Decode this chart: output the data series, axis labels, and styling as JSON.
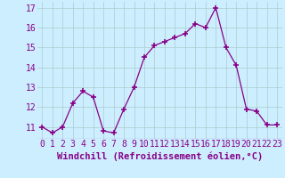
{
  "x": [
    0,
    1,
    2,
    3,
    4,
    5,
    6,
    7,
    8,
    9,
    10,
    11,
    12,
    13,
    14,
    15,
    16,
    17,
    18,
    19,
    20,
    21,
    22,
    23
  ],
  "y": [
    11.0,
    10.7,
    11.0,
    12.2,
    12.8,
    12.5,
    10.8,
    10.7,
    11.9,
    13.0,
    14.5,
    15.1,
    15.3,
    15.5,
    15.7,
    16.2,
    16.0,
    17.0,
    15.0,
    14.1,
    11.9,
    11.8,
    11.1,
    11.1
  ],
  "line_color": "#880088",
  "marker_color": "#880088",
  "bg_color": "#cceeff",
  "grid_color": "#aacccc",
  "xlabel": "Windchill (Refroidissement éolien,°C)",
  "xlabel_color": "#880088",
  "tick_color": "#880088",
  "xlim": [
    -0.5,
    23.5
  ],
  "ylim": [
    10.4,
    17.3
  ],
  "yticks": [
    11,
    12,
    13,
    14,
    15,
    16,
    17
  ],
  "xticks": [
    0,
    1,
    2,
    3,
    4,
    5,
    6,
    7,
    8,
    9,
    10,
    11,
    12,
    13,
    14,
    15,
    16,
    17,
    18,
    19,
    20,
    21,
    22,
    23
  ],
  "font_size": 7.0,
  "xlabel_fontsize": 7.5
}
